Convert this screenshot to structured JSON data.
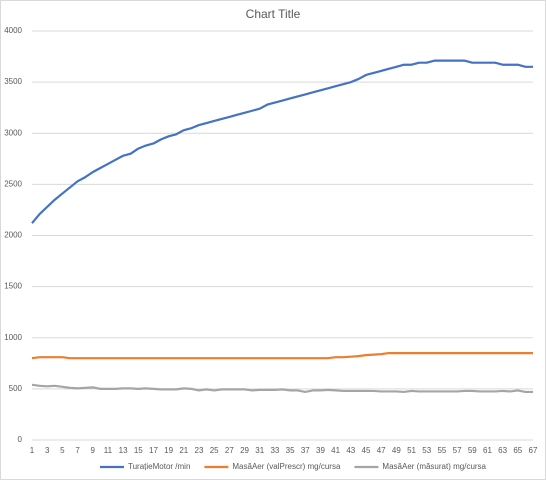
{
  "chart_data": {
    "type": "line",
    "title": "Chart Title",
    "categories": [
      1,
      null,
      3,
      null,
      5,
      null,
      7,
      null,
      9,
      null,
      11,
      null,
      13,
      null,
      15,
      null,
      17,
      null,
      19,
      null,
      21,
      null,
      23,
      null,
      25,
      null,
      27,
      null,
      29,
      null,
      31,
      null,
      33,
      null,
      35,
      null,
      37,
      null,
      39,
      null,
      41,
      null,
      43,
      null,
      45,
      null,
      47,
      null,
      49,
      null,
      51,
      null,
      53,
      null,
      55,
      null,
      57,
      null,
      59,
      null,
      61,
      null,
      63,
      null,
      65,
      null,
      67
    ],
    "series": [
      {
        "name": "TurațieMotor /min",
        "color": "#4472c4",
        "values": [
          2120,
          2210,
          2280,
          2350,
          2410,
          2470,
          2530,
          2570,
          2620,
          2660,
          2700,
          2740,
          2780,
          2800,
          2850,
          2880,
          2900,
          2940,
          2970,
          2990,
          3030,
          3050,
          3080,
          3100,
          3120,
          3140,
          3160,
          3180,
          3200,
          3220,
          3240,
          3280,
          3300,
          3320,
          3340,
          3360,
          3380,
          3400,
          3420,
          3440,
          3460,
          3480,
          3500,
          3530,
          3570,
          3590,
          3610,
          3630,
          3650,
          3670,
          3670,
          3690,
          3690,
          3710,
          3710,
          3710,
          3710,
          3710,
          3690,
          3690,
          3690,
          3690,
          3670,
          3670,
          3670,
          3650,
          3650
        ]
      },
      {
        "name": "MasăAer (valPrescr) mg/cursa",
        "color": "#ed7d31",
        "values": [
          800,
          810,
          810,
          810,
          810,
          800,
          800,
          800,
          800,
          800,
          800,
          800,
          800,
          800,
          800,
          800,
          800,
          800,
          800,
          800,
          800,
          800,
          800,
          800,
          800,
          800,
          800,
          800,
          800,
          800,
          800,
          800,
          800,
          800,
          800,
          800,
          800,
          800,
          800,
          800,
          810,
          810,
          815,
          820,
          830,
          835,
          840,
          850,
          850,
          850,
          850,
          850,
          850,
          850,
          850,
          850,
          850,
          850,
          850,
          850,
          850,
          850,
          850,
          850,
          850,
          850,
          850
        ]
      },
      {
        "name": "MasăAer (măsurat) mg/cursa",
        "color": "#a5a5a5",
        "values": [
          540,
          530,
          525,
          530,
          520,
          510,
          505,
          510,
          515,
          500,
          500,
          500,
          505,
          505,
          500,
          505,
          500,
          495,
          495,
          495,
          505,
          500,
          485,
          495,
          485,
          495,
          495,
          495,
          495,
          485,
          490,
          490,
          490,
          495,
          485,
          485,
          470,
          485,
          485,
          490,
          485,
          480,
          480,
          480,
          480,
          480,
          475,
          475,
          475,
          470,
          480,
          475,
          475,
          475,
          475,
          475,
          475,
          480,
          480,
          475,
          475,
          475,
          480,
          475,
          485,
          470,
          470
        ]
      }
    ],
    "ylim": [
      0,
      4000
    ],
    "yticks": [
      0,
      500,
      1000,
      1500,
      2000,
      2500,
      3000,
      3500,
      4000
    ],
    "grid": true
  }
}
